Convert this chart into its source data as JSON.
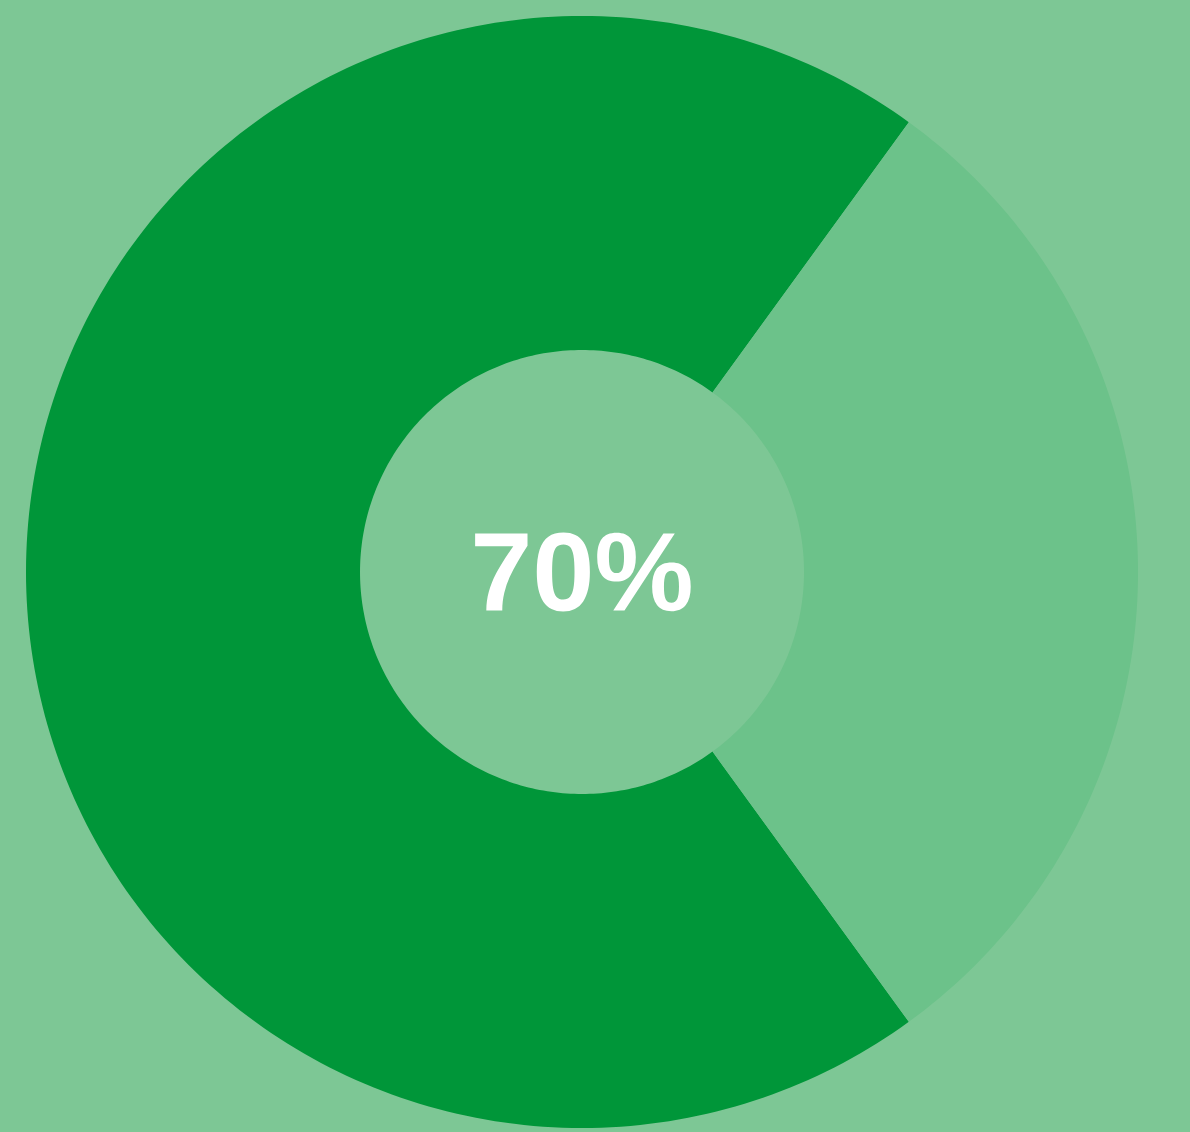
{
  "chart_data": {
    "type": "donut",
    "categories": [
      null,
      null
    ],
    "values": [
      70,
      30
    ],
    "colors": [
      "#009639",
      "#6cc28a"
    ],
    "annotations": [
      "70%"
    ]
  }
}
